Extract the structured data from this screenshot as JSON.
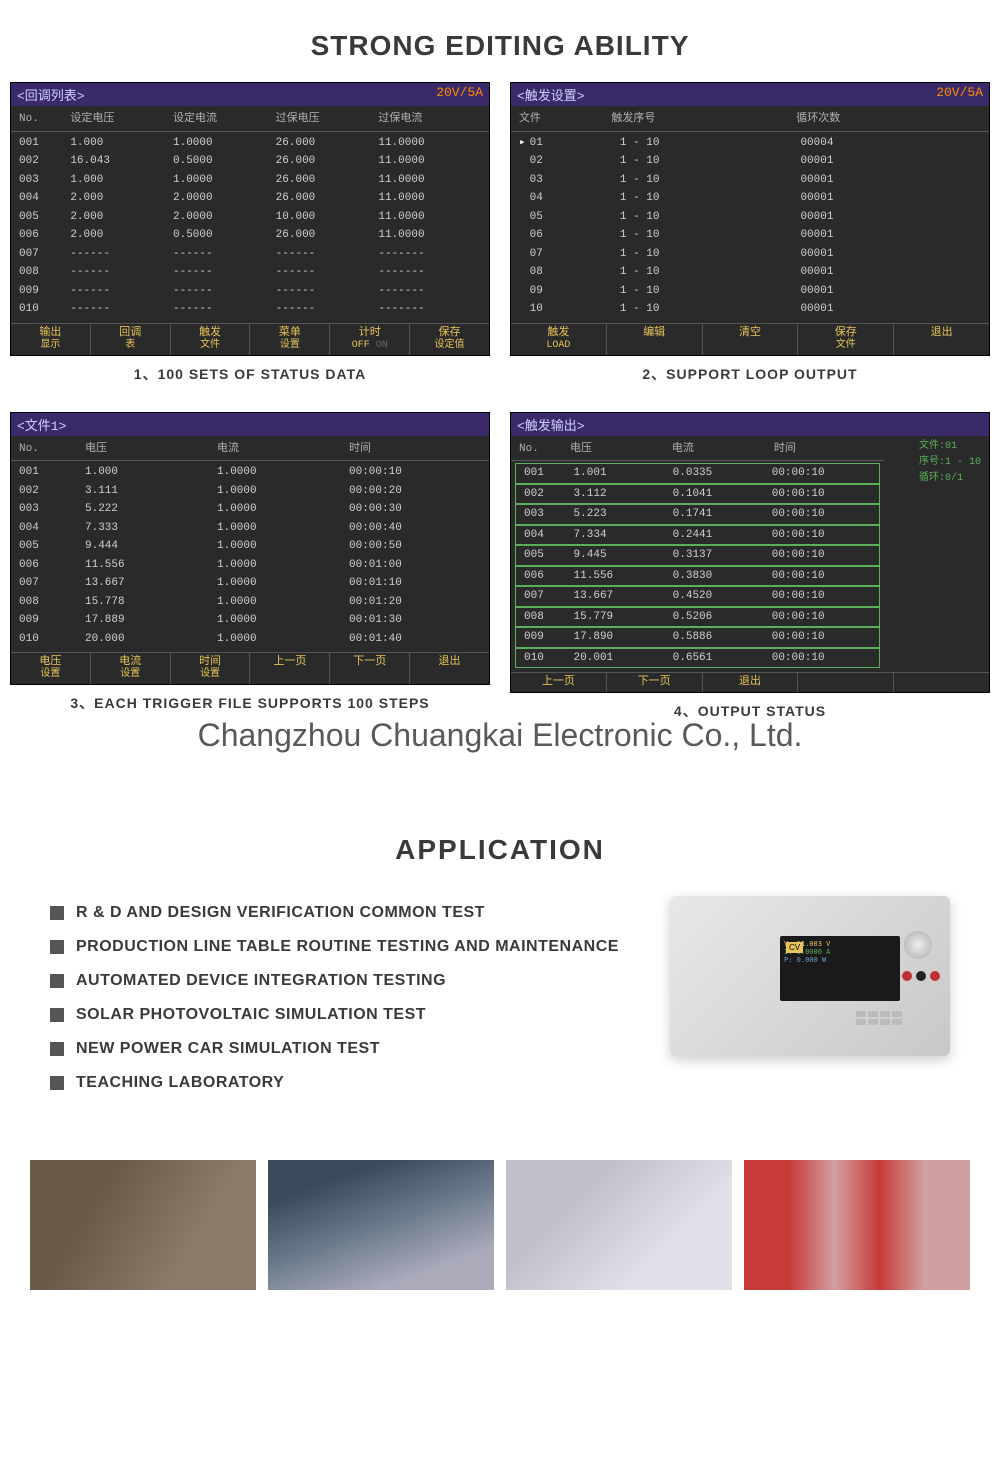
{
  "titles": {
    "main": "STRONG EDITING ABILITY",
    "application": "APPLICATION"
  },
  "watermark": "Changzhou Chuangkai Electronic Co., Ltd.",
  "colors": {
    "screen_bg": "#2a2a2a",
    "header_bg": "#3a2a6a",
    "rating": "#ff8c00",
    "softkey": "#e8c45a",
    "green": "#5ab05a"
  },
  "screen1": {
    "header_title": "<回调列表>",
    "rating": "20V/5A",
    "caption": "1、100 SETS OF STATUS DATA",
    "columns": [
      "No.",
      "设定电压",
      "设定电流",
      "过保电压",
      "过保电流"
    ],
    "rows": [
      [
        "001",
        "1.000",
        "1.0000",
        "26.000",
        "11.0000"
      ],
      [
        "002",
        "16.043",
        "0.5000",
        "26.000",
        "11.0000"
      ],
      [
        "003",
        "1.000",
        "1.0000",
        "26.000",
        "11.0000"
      ],
      [
        "004",
        "2.000",
        "2.0000",
        "26.000",
        "11.0000"
      ],
      [
        "005",
        "2.000",
        "2.0000",
        "10.000",
        "11.0000"
      ],
      [
        "006",
        "2.000",
        "0.5000",
        "26.000",
        "11.0000"
      ],
      [
        "007",
        "------",
        "------",
        "------",
        "-------"
      ],
      [
        "008",
        "------",
        "------",
        "------",
        "-------"
      ],
      [
        "009",
        "------",
        "------",
        "------",
        "-------"
      ],
      [
        "010",
        "------",
        "------",
        "------",
        "-------"
      ]
    ],
    "softkeys": [
      {
        "l1": "输出",
        "l2": "显示"
      },
      {
        "l1": "回调",
        "l2": "表"
      },
      {
        "l1": "触发",
        "l2": "文件"
      },
      {
        "l1": "菜单",
        "l2": "设置"
      },
      {
        "l1": "计时",
        "l2": "OFF",
        "off": "ON"
      },
      {
        "l1": "保存",
        "l2": "设定值"
      }
    ]
  },
  "screen2": {
    "header_title": "<触发设置>",
    "rating": "20V/5A",
    "caption": "2、SUPPORT LOOP OUTPUT",
    "columns": [
      "文件",
      "触发序号",
      "循环次数"
    ],
    "rows": [
      [
        "01",
        "1 - 10",
        "00004"
      ],
      [
        "02",
        "1 - 10",
        "00001"
      ],
      [
        "03",
        "1 - 10",
        "00001"
      ],
      [
        "04",
        "1 - 10",
        "00001"
      ],
      [
        "05",
        "1 - 10",
        "00001"
      ],
      [
        "06",
        "1 - 10",
        "00001"
      ],
      [
        "07",
        "1 - 10",
        "00001"
      ],
      [
        "08",
        "1 - 10",
        "00001"
      ],
      [
        "09",
        "1 - 10",
        "00001"
      ],
      [
        "10",
        "1 - 10",
        "00001"
      ]
    ],
    "softkeys": [
      {
        "l1": "触发",
        "l2": "LOAD"
      },
      {
        "l1": "编辑"
      },
      {
        "l1": "清空"
      },
      {
        "l1": "保存",
        "l2": "文件"
      },
      {
        "l1": "退出"
      }
    ]
  },
  "screen3": {
    "header_title": "<文件1>",
    "caption": "3、EACH TRIGGER FILE SUPPORTS 100 STEPS",
    "columns": [
      "No.",
      "电压",
      "电流",
      "时间"
    ],
    "rows": [
      [
        "001",
        "1.000",
        "1.0000",
        "00:00:10"
      ],
      [
        "002",
        "3.111",
        "1.0000",
        "00:00:20"
      ],
      [
        "003",
        "5.222",
        "1.0000",
        "00:00:30"
      ],
      [
        "004",
        "7.333",
        "1.0000",
        "00:00:40"
      ],
      [
        "005",
        "9.444",
        "1.0000",
        "00:00:50"
      ],
      [
        "006",
        "11.556",
        "1.0000",
        "00:01:00"
      ],
      [
        "007",
        "13.667",
        "1.0000",
        "00:01:10"
      ],
      [
        "008",
        "15.778",
        "1.0000",
        "00:01:20"
      ],
      [
        "009",
        "17.889",
        "1.0000",
        "00:01:30"
      ],
      [
        "010",
        "20.000",
        "1.0000",
        "00:01:40"
      ]
    ],
    "softkeys": [
      {
        "l1": "电压",
        "l2": "设置"
      },
      {
        "l1": "电流",
        "l2": "设置"
      },
      {
        "l1": "时间",
        "l2": "设置"
      },
      {
        "l1": "上一页"
      },
      {
        "l1": "下一页"
      },
      {
        "l1": "退出"
      }
    ]
  },
  "screen4": {
    "header_title": "<触发输出>",
    "caption": "4、OUTPUT STATUS",
    "columns": [
      "No.",
      "电压",
      "电流",
      "时间"
    ],
    "side": {
      "file": "文件:01",
      "seq": "序号:1 - 10",
      "loop": "循环:0/1"
    },
    "rows": [
      [
        "001",
        "1.001",
        "0.0335",
        "00:00:10"
      ],
      [
        "002",
        "3.112",
        "0.1041",
        "00:00:10"
      ],
      [
        "003",
        "5.223",
        "0.1741",
        "00:00:10"
      ],
      [
        "004",
        "7.334",
        "0.2441",
        "00:00:10"
      ],
      [
        "005",
        "9.445",
        "0.3137",
        "00:00:10"
      ],
      [
        "006",
        "11.556",
        "0.3830",
        "00:00:10"
      ],
      [
        "007",
        "13.667",
        "0.4520",
        "00:00:10"
      ],
      [
        "008",
        "15.779",
        "0.5206",
        "00:00:10"
      ],
      [
        "009",
        "17.890",
        "0.5886",
        "00:00:10"
      ],
      [
        "010",
        "20.001",
        "0.6561",
        "00:00:10"
      ]
    ],
    "softkeys": [
      {
        "l1": "上一页"
      },
      {
        "l1": "下一页"
      },
      {
        "l1": "退出"
      },
      {
        "l1": ""
      },
      {
        "l1": ""
      }
    ]
  },
  "applications": [
    "R & D AND DESIGN VERIFICATION COMMON TEST",
    "PRODUCTION LINE TABLE ROUTINE TESTING AND MAINTENANCE",
    "AUTOMATED DEVICE INTEGRATION TESTING",
    "SOLAR PHOTOVOLTAIC SIMULATION TEST",
    "NEW POWER CAR SIMULATION TEST",
    "TEACHING LABORATORY"
  ],
  "device": {
    "cv": "CV",
    "line1": "V: 11.003  V",
    "line2": "I: 0.0000  A",
    "line3": "P: 0.000  W"
  }
}
